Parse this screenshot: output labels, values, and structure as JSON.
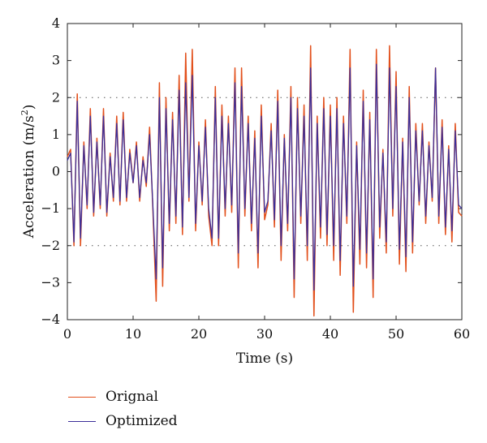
{
  "chart_data": {
    "type": "line",
    "xlabel": "Time (s)",
    "ylabel_main": "Acceleration (m/s",
    "ylabel_sup": "2",
    "ylabel_close": ")",
    "xlim": [
      0,
      60
    ],
    "ylim": [
      -4,
      4
    ],
    "xticks": [
      0,
      10,
      20,
      30,
      40,
      50,
      60
    ],
    "yticks": [
      -4,
      -3,
      -2,
      -1,
      0,
      1,
      2,
      3,
      4
    ],
    "reference_lines": [
      2,
      -2
    ],
    "grid": false,
    "legend_position": "bottom-left, below plot",
    "series": [
      {
        "name": "Orignal",
        "color": "#e2501c",
        "x": [
          0,
          0.5,
          1,
          1.5,
          2,
          2.5,
          3,
          3.5,
          4,
          4.5,
          5,
          5.5,
          6,
          6.5,
          7,
          7.5,
          8,
          8.5,
          9,
          9.5,
          10,
          10.5,
          11,
          11.5,
          12,
          12.5,
          13,
          13.5,
          14,
          14.5,
          15,
          15.5,
          16,
          16.5,
          17,
          17.5,
          18,
          18.5,
          19,
          19.5,
          20,
          20.5,
          21,
          21.5,
          22,
          22.5,
          23,
          23.5,
          24,
          24.5,
          25,
          25.5,
          26,
          26.5,
          27,
          27.5,
          28,
          28.5,
          29,
          29.5,
          30,
          30.5,
          31,
          31.5,
          32,
          32.5,
          33,
          33.5,
          34,
          34.5,
          35,
          35.5,
          36,
          36.5,
          37,
          37.5,
          38,
          38.5,
          39,
          39.5,
          40,
          40.5,
          41,
          41.5,
          42,
          42.5,
          43,
          43.5,
          44,
          44.5,
          45,
          45.5,
          46,
          46.5,
          47,
          47.5,
          48,
          48.5,
          49,
          49.5,
          50,
          50.5,
          51,
          51.5,
          52,
          52.5,
          53,
          53.5,
          54,
          54.5,
          55,
          55.5,
          56,
          56.5,
          57,
          57.5,
          58,
          58.5,
          59,
          59.5,
          60
        ],
        "values": [
          0.4,
          0.6,
          -2.0,
          2.1,
          -2.0,
          0.8,
          -1.0,
          1.7,
          -1.2,
          0.9,
          -1.0,
          1.7,
          -1.2,
          0.5,
          -0.8,
          1.5,
          -0.9,
          1.6,
          -0.8,
          0.6,
          -0.3,
          0.8,
          -0.8,
          0.4,
          -0.4,
          1.2,
          -1.0,
          -3.5,
          2.4,
          -3.1,
          2.0,
          -1.6,
          1.6,
          -1.4,
          2.6,
          -1.7,
          3.2,
          -0.8,
          3.3,
          -1.6,
          0.8,
          -0.9,
          1.4,
          -1.2,
          -2.0,
          2.3,
          -2.0,
          1.8,
          -1.2,
          1.5,
          -1.1,
          2.8,
          -2.6,
          2.8,
          -1.2,
          1.5,
          -1.6,
          1.1,
          -2.6,
          1.8,
          -1.3,
          -0.9,
          1.3,
          -1.5,
          2.2,
          -2.4,
          1.0,
          -1.6,
          2.3,
          -3.4,
          2.0,
          -1.4,
          1.8,
          -2.4,
          3.4,
          -3.9,
          1.5,
          -1.8,
          2.0,
          -2.0,
          1.8,
          -2.4,
          2.0,
          -2.8,
          1.5,
          -1.4,
          3.3,
          -3.8,
          0.8,
          -2.5,
          2.2,
          -2.6,
          1.6,
          -3.4,
          3.3,
          -1.8,
          0.6,
          -2.2,
          3.4,
          -1.2,
          2.7,
          -2.5,
          0.9,
          -2.7,
          2.3,
          -2.2,
          1.3,
          -0.9,
          1.3,
          -1.4,
          0.8,
          -0.8,
          2.8,
          -1.4,
          1.4,
          -1.7,
          0.7,
          -1.9,
          1.3,
          -1.1,
          -1.2
        ]
      },
      {
        "name": "Optimized",
        "color": "#3b2e99",
        "x": [
          0,
          0.5,
          1,
          1.5,
          2,
          2.5,
          3,
          3.5,
          4,
          4.5,
          5,
          5.5,
          6,
          6.5,
          7,
          7.5,
          8,
          8.5,
          9,
          9.5,
          10,
          10.5,
          11,
          11.5,
          12,
          12.5,
          13,
          13.5,
          14,
          14.5,
          15,
          15.5,
          16,
          16.5,
          17,
          17.5,
          18,
          18.5,
          19,
          19.5,
          20,
          20.5,
          21,
          21.5,
          22,
          22.5,
          23,
          23.5,
          24,
          24.5,
          25,
          25.5,
          26,
          26.5,
          27,
          27.5,
          28,
          28.5,
          29,
          29.5,
          30,
          30.5,
          31,
          31.5,
          32,
          32.5,
          33,
          33.5,
          34,
          34.5,
          35,
          35.5,
          36,
          36.5,
          37,
          37.5,
          38,
          38.5,
          39,
          39.5,
          40,
          40.5,
          41,
          41.5,
          42,
          42.5,
          43,
          43.5,
          44,
          44.5,
          45,
          45.5,
          46,
          46.5,
          47,
          47.5,
          48,
          48.5,
          49,
          49.5,
          50,
          50.5,
          51,
          51.5,
          52,
          52.5,
          53,
          53.5,
          54,
          54.5,
          55,
          55.5,
          56,
          56.5,
          57,
          57.5,
          58,
          58.5,
          59,
          59.5,
          60
        ],
        "values": [
          0.3,
          0.5,
          -1.9,
          1.9,
          -1.8,
          0.7,
          -0.9,
          1.5,
          -1.1,
          0.8,
          -0.9,
          1.5,
          -1.1,
          0.4,
          -0.7,
          1.3,
          -0.8,
          1.4,
          -0.7,
          0.5,
          -0.3,
          0.7,
          -0.7,
          0.3,
          -0.3,
          1.0,
          -0.9,
          -2.9,
          2.0,
          -2.6,
          1.7,
          -1.4,
          1.4,
          -1.2,
          2.2,
          -1.5,
          2.4,
          -0.7,
          2.6,
          -1.4,
          0.7,
          -0.8,
          1.2,
          -1.0,
          -1.8,
          2.0,
          -1.8,
          1.5,
          -1.0,
          1.3,
          -0.9,
          2.4,
          -2.2,
          2.3,
          -1.0,
          1.3,
          -1.4,
          0.9,
          -2.2,
          1.5,
          -1.1,
          -0.8,
          1.1,
          -1.3,
          1.9,
          -2.0,
          0.9,
          -1.4,
          2.0,
          -2.9,
          1.7,
          -1.2,
          1.5,
          -2.0,
          2.8,
          -3.2,
          1.3,
          -1.5,
          1.7,
          -1.7,
          1.5,
          -2.0,
          1.7,
          -2.4,
          1.3,
          -1.2,
          2.8,
          -3.1,
          0.7,
          -2.1,
          1.9,
          -2.2,
          1.4,
          -2.9,
          2.9,
          -1.5,
          0.5,
          -1.9,
          2.8,
          -1.0,
          2.3,
          -2.1,
          0.8,
          -2.3,
          2.0,
          -1.9,
          1.1,
          -0.8,
          1.1,
          -1.2,
          0.7,
          -0.7,
          2.8,
          -1.2,
          1.2,
          -1.5,
          0.6,
          -1.6,
          1.1,
          -0.9,
          -1.0
        ]
      }
    ]
  }
}
